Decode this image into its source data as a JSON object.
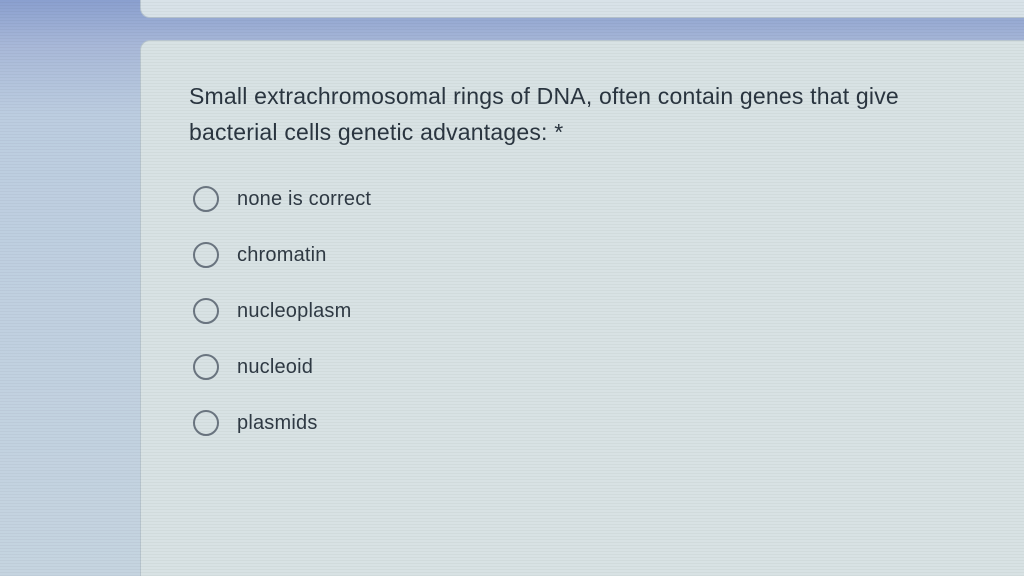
{
  "question": {
    "text": "Small extrachromosomal rings of DNA, often contain genes that give bacterial cells genetic advantages: *",
    "required": true
  },
  "options": [
    {
      "label": "none is correct",
      "selected": false
    },
    {
      "label": "chromatin",
      "selected": false
    },
    {
      "label": "nucleoplasm",
      "selected": false
    },
    {
      "label": "nucleoid",
      "selected": false
    },
    {
      "label": "plasmids",
      "selected": false
    }
  ],
  "style": {
    "card_bg": "#d8e2e4",
    "card_border": "#b8c5ce",
    "page_bg_top": "#8a9fcf",
    "page_bg_bottom": "#c5d4e0",
    "text_color": "#2a3540",
    "radio_border": "#6a7580",
    "question_fontsize": 23,
    "option_fontsize": 20,
    "option_gap": 30,
    "radio_size": 26
  }
}
